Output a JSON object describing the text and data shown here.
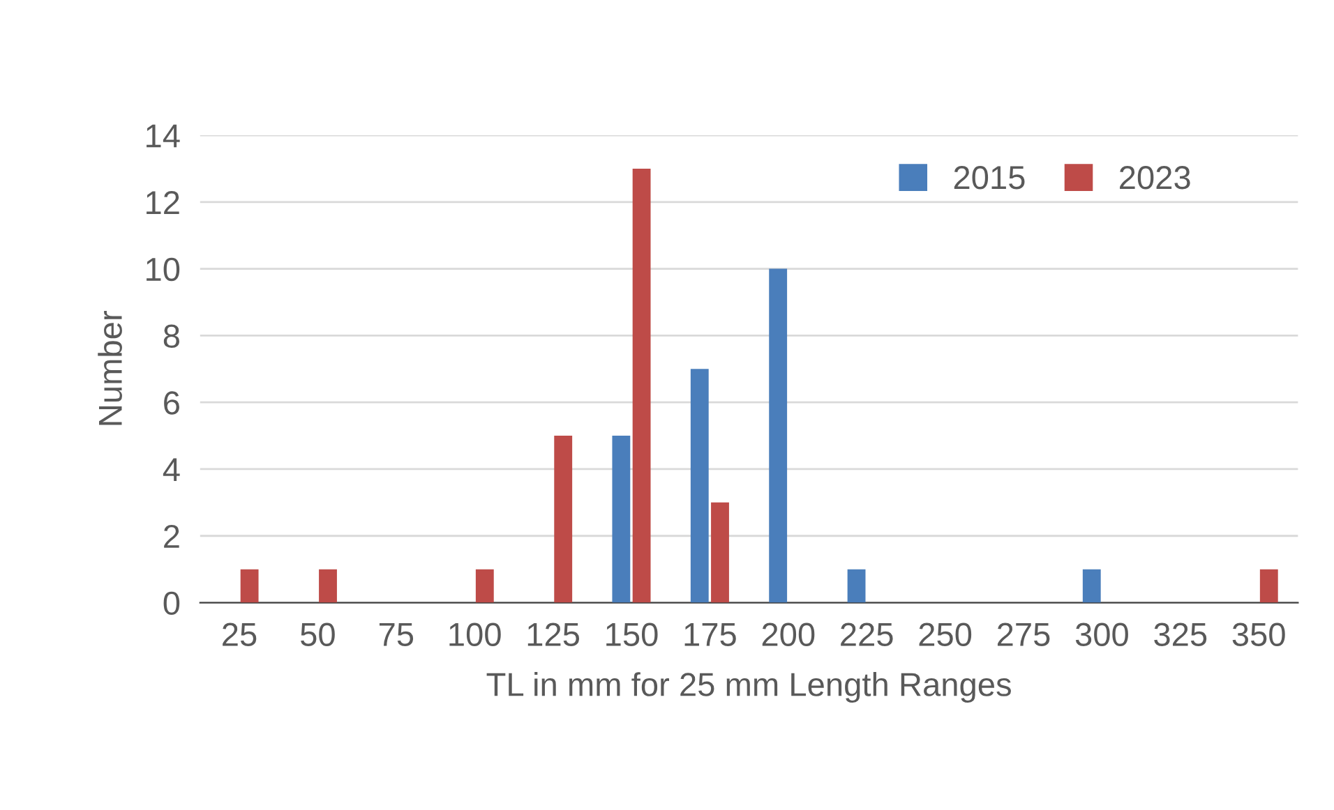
{
  "chart_data": {
    "type": "bar",
    "xlabel": "TL in mm for 25 mm Length Ranges",
    "ylabel": "Number",
    "categories": [
      "25",
      "50",
      "75",
      "100",
      "125",
      "150",
      "175",
      "200",
      "225",
      "250",
      "275",
      "300",
      "325",
      "350"
    ],
    "series": [
      {
        "name": "2015",
        "color": "#4a7ebb",
        "values": [
          null,
          null,
          null,
          null,
          null,
          5,
          7,
          10,
          1,
          null,
          null,
          1,
          null,
          null
        ]
      },
      {
        "name": "2023",
        "color": "#be4b48",
        "values": [
          1,
          1,
          null,
          1,
          5,
          13,
          3,
          null,
          null,
          null,
          null,
          null,
          null,
          1
        ]
      }
    ],
    "ylim": [
      0,
      14
    ],
    "yticks": [
      0,
      2,
      4,
      6,
      8,
      10,
      12,
      14
    ],
    "grid": "y",
    "legend": "top right"
  }
}
